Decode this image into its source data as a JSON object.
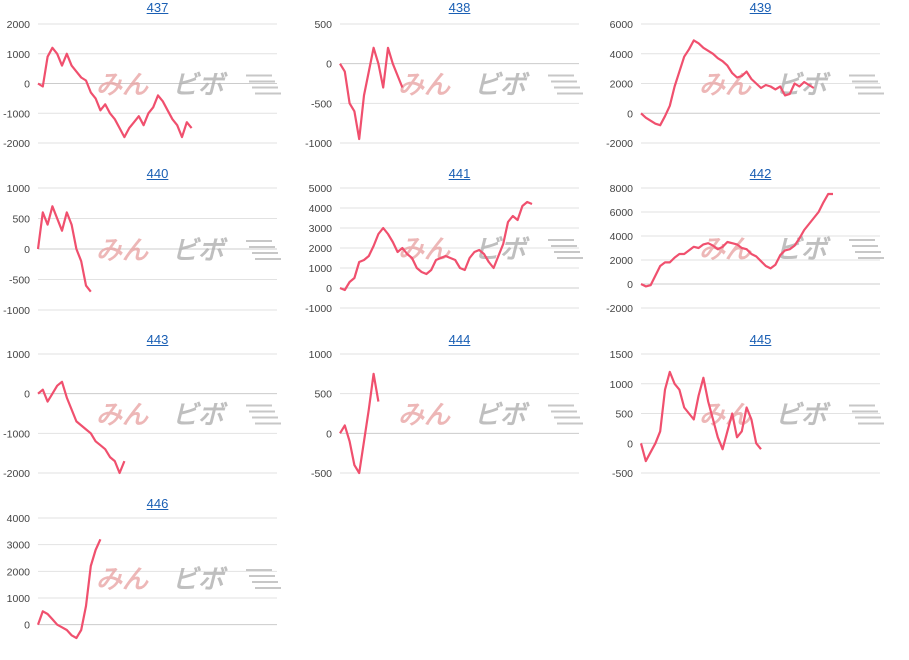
{
  "colors": {
    "line": "#f0506e",
    "grid": "#e2e2e2",
    "axis": "#cccccc",
    "title": "#1a5fb4",
    "watermark_left": "#e8a0a0",
    "watermark_right": "#b0b0b0"
  },
  "watermark": {
    "left": "みん",
    "right": "ビボ"
  },
  "chart_data": [
    {
      "type": "line",
      "title": "437",
      "yticks": [
        "2000",
        "1000",
        "0",
        "-1000",
        "-2000"
      ],
      "ylim": [
        -2000,
        2000
      ],
      "grid": true,
      "values": [
        0,
        -100,
        900,
        1200,
        1000,
        600,
        1000,
        600,
        400,
        200,
        100,
        -300,
        -500,
        -900,
        -700,
        -1000,
        -1200,
        -1500,
        -1800,
        -1500,
        -1300,
        -1100,
        -1400,
        -1000,
        -800,
        -400,
        -600,
        -900,
        -1200,
        -1400,
        -1800,
        -1300,
        -1500
      ]
    },
    {
      "type": "line",
      "title": "438",
      "yticks": [
        "500",
        "0",
        "-500",
        "-1000"
      ],
      "ylim": [
        -1000,
        500
      ],
      "grid": true,
      "values": [
        0,
        -100,
        -500,
        -600,
        -950,
        -400,
        -100,
        200,
        0,
        -300,
        200,
        0,
        -150,
        -300
      ]
    },
    {
      "type": "line",
      "title": "439",
      "yticks": [
        "6000",
        "4000",
        "2000",
        "0",
        "-2000"
      ],
      "ylim": [
        -2000,
        6000
      ],
      "grid": true,
      "values": [
        0,
        -300,
        -500,
        -700,
        -800,
        -200,
        500,
        1800,
        2800,
        3800,
        4300,
        4900,
        4700,
        4400,
        4200,
        4000,
        3700,
        3500,
        3200,
        2700,
        2400,
        2500,
        2800,
        2300,
        2000,
        1700,
        1900,
        1800,
        1600,
        1800,
        1200,
        1300,
        2000,
        1800,
        2100,
        1900,
        1700
      ]
    },
    {
      "type": "line",
      "title": "440",
      "yticks": [
        "1000",
        "500",
        "0",
        "-500",
        "-1000"
      ],
      "ylim": [
        -1000,
        1000
      ],
      "grid": true,
      "values": [
        0,
        600,
        400,
        700,
        500,
        300,
        600,
        400,
        0,
        -200,
        -600,
        -700
      ]
    },
    {
      "type": "line",
      "title": "441",
      "yticks": [
        "5000",
        "4000",
        "3000",
        "2000",
        "1000",
        "0",
        "-1000"
      ],
      "ylim": [
        -1000,
        5000
      ],
      "grid": true,
      "values": [
        0,
        -100,
        300,
        500,
        1300,
        1400,
        1600,
        2100,
        2700,
        3000,
        2700,
        2300,
        1800,
        2000,
        1700,
        1500,
        1000,
        800,
        700,
        900,
        1400,
        1500,
        1600,
        1500,
        1400,
        1000,
        900,
        1500,
        1800,
        1900,
        1700,
        1300,
        1000,
        1600,
        2200,
        3300,
        3600,
        3400,
        4100,
        4300,
        4200
      ]
    },
    {
      "type": "line",
      "title": "442",
      "yticks": [
        "8000",
        "6000",
        "4000",
        "2000",
        "0",
        "-2000"
      ],
      "ylim": [
        -2000,
        8000
      ],
      "grid": true,
      "values": [
        0,
        -200,
        -100,
        700,
        1500,
        1800,
        1800,
        2200,
        2500,
        2500,
        2800,
        3100,
        3000,
        3300,
        3400,
        3200,
        2900,
        3100,
        3500,
        3400,
        3300,
        3000,
        2900,
        2500,
        2300,
        1900,
        1500,
        1300,
        1600,
        2400,
        2800,
        2900,
        3200,
        3800,
        4500,
        5000,
        5500,
        6000,
        6800,
        7500,
        7500
      ]
    },
    {
      "type": "line",
      "title": "443",
      "yticks": [
        "1000",
        "0",
        "-1000",
        "-2000"
      ],
      "ylim": [
        -2000,
        1000
      ],
      "grid": true,
      "values": [
        0,
        100,
        -200,
        0,
        200,
        300,
        -100,
        -400,
        -700,
        -800,
        -900,
        -1000,
        -1200,
        -1300,
        -1400,
        -1600,
        -1700,
        -2000,
        -1700
      ]
    },
    {
      "type": "line",
      "title": "444",
      "yticks": [
        "1000",
        "500",
        "0",
        "-500"
      ],
      "ylim": [
        -500,
        1000
      ],
      "grid": true,
      "values": [
        0,
        100,
        -100,
        -400,
        -500,
        -100,
        300,
        750,
        400
      ]
    },
    {
      "type": "line",
      "title": "445",
      "yticks": [
        "1500",
        "1000",
        "500",
        "0",
        "-500"
      ],
      "ylim": [
        -500,
        1500
      ],
      "grid": true,
      "values": [
        0,
        -300,
        -150,
        0,
        200,
        900,
        1200,
        1000,
        900,
        600,
        500,
        400,
        800,
        1100,
        700,
        400,
        100,
        -100,
        200,
        500,
        100,
        200,
        600,
        400,
        0,
        -100
      ]
    },
    {
      "type": "line",
      "title": "446",
      "yticks": [
        "4000",
        "3000",
        "2000",
        "1000",
        "0"
      ],
      "ylim": [
        -500,
        4000
      ],
      "grid": true,
      "values": [
        0,
        500,
        400,
        200,
        0,
        -100,
        -200,
        -400,
        -500,
        -200,
        700,
        2200,
        2800,
        3200
      ]
    }
  ]
}
